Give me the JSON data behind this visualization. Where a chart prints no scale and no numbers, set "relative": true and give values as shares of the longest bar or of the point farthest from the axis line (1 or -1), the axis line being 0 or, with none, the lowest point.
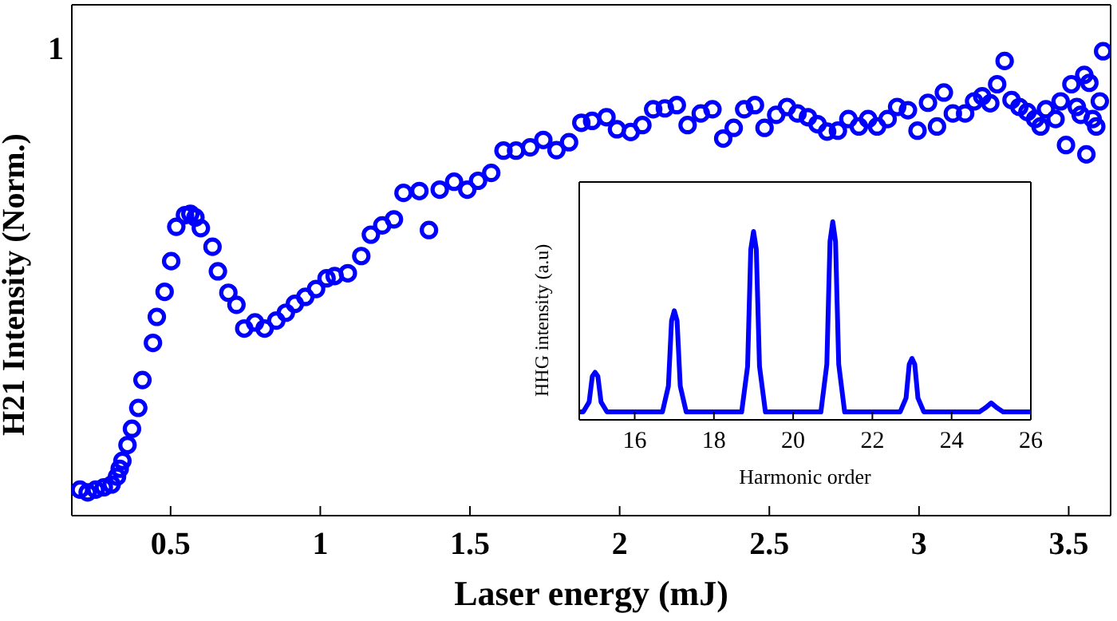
{
  "chart_data": [
    {
      "type": "scatter",
      "xlabel": "Laser energy (mJ)",
      "ylabel": "H21 Intensity (Norm.)",
      "relative": true,
      "marker": "circle",
      "xlim": [
        0.17,
        3.64
      ],
      "xticks": [
        0.5,
        1,
        1.5,
        2,
        2.5,
        3,
        3.5
      ],
      "annotations": [
        "1"
      ],
      "series": [
        {
          "color": "#0000ff",
          "x": [
            0.197,
            0.223,
            0.25,
            0.277,
            0.303,
            0.321,
            0.33,
            0.339,
            0.356,
            0.371,
            0.392,
            0.406,
            0.441,
            0.454,
            0.48,
            0.502,
            0.519,
            0.548,
            0.566,
            0.583,
            0.601,
            0.64,
            0.658,
            0.693,
            0.72,
            0.746,
            0.782,
            0.814,
            0.853,
            0.885,
            0.915,
            0.95,
            0.986,
            1.021,
            1.048,
            1.092,
            1.137,
            1.169,
            1.207,
            1.246,
            1.278,
            1.331,
            1.363,
            1.399,
            1.447,
            1.491,
            1.527,
            1.571,
            1.612,
            1.654,
            1.701,
            1.745,
            1.789,
            1.831,
            1.872,
            1.908,
            1.956,
            1.991,
            2.037,
            2.076,
            2.112,
            2.151,
            2.191,
            2.227,
            2.271,
            2.31,
            2.346,
            2.381,
            2.416,
            2.452,
            2.484,
            2.523,
            2.559,
            2.594,
            2.629,
            2.661,
            2.693,
            2.729,
            2.764,
            2.799,
            2.83,
            2.86,
            2.895,
            2.927,
            2.963,
            2.995,
            3.03,
            3.06,
            3.083,
            3.113,
            3.154,
            3.184,
            3.211,
            3.238,
            3.261,
            3.286,
            3.309,
            3.335,
            3.362,
            3.388,
            3.406,
            3.424,
            3.456,
            3.473,
            3.491,
            3.509,
            3.527,
            3.54,
            3.552,
            3.559,
            3.569,
            3.58,
            3.592,
            3.604,
            3.615
          ],
          "values": [
            0.056,
            0.05,
            0.056,
            0.061,
            0.067,
            0.084,
            0.101,
            0.118,
            0.152,
            0.187,
            0.232,
            0.292,
            0.372,
            0.428,
            0.482,
            0.548,
            0.622,
            0.647,
            0.65,
            0.642,
            0.619,
            0.579,
            0.526,
            0.48,
            0.454,
            0.403,
            0.416,
            0.403,
            0.42,
            0.437,
            0.456,
            0.471,
            0.488,
            0.511,
            0.516,
            0.522,
            0.559,
            0.605,
            0.625,
            0.638,
            0.695,
            0.699,
            0.615,
            0.702,
            0.719,
            0.702,
            0.721,
            0.738,
            0.786,
            0.786,
            0.793,
            0.809,
            0.787,
            0.804,
            0.846,
            0.85,
            0.858,
            0.832,
            0.826,
            0.841,
            0.875,
            0.877,
            0.884,
            0.841,
            0.866,
            0.875,
            0.812,
            0.835,
            0.875,
            0.884,
            0.835,
            0.863,
            0.88,
            0.866,
            0.858,
            0.843,
            0.827,
            0.829,
            0.854,
            0.838,
            0.854,
            0.838,
            0.854,
            0.88,
            0.873,
            0.829,
            0.889,
            0.838,
            0.911,
            0.866,
            0.866,
            0.892,
            0.903,
            0.888,
            0.929,
            0.979,
            0.895,
            0.88,
            0.869,
            0.854,
            0.838,
            0.875,
            0.854,
            0.892,
            0.798,
            0.929,
            0.88,
            0.863,
            0.949,
            0.778,
            0.932,
            0.854,
            0.838,
            0.892,
            1.0
          ]
        }
      ]
    },
    {
      "type": "line",
      "xlabel": "Harmonic order",
      "ylabel": "HHG intensity (a.u)",
      "relative": true,
      "xlim": [
        14.6,
        26
      ],
      "xticks": [
        16,
        18,
        20,
        22,
        24,
        26
      ],
      "series": [
        {
          "color": "#0000ff",
          "x": [
            14.6,
            14.7,
            14.85,
            14.93,
            15,
            15.07,
            15.15,
            15.3,
            16.7,
            16.85,
            16.93,
            17,
            17.07,
            17.15,
            17.3,
            18.7,
            18.85,
            18.93,
            19,
            19.07,
            19.15,
            19.3,
            20.7,
            20.85,
            20.93,
            21,
            21.07,
            21.15,
            21.3,
            22.7,
            22.85,
            22.93,
            23,
            23.07,
            23.15,
            23.3,
            24.7,
            24.85,
            25,
            25.15,
            25.3,
            26
          ],
          "values": [
            0.04,
            0.04,
            0.09,
            0.22,
            0.24,
            0.22,
            0.09,
            0.04,
            0.04,
            0.17,
            0.5,
            0.55,
            0.5,
            0.17,
            0.04,
            0.04,
            0.27,
            0.86,
            0.95,
            0.86,
            0.27,
            0.04,
            0.04,
            0.28,
            0.9,
            1,
            0.9,
            0.28,
            0.04,
            0.04,
            0.11,
            0.28,
            0.31,
            0.28,
            0.11,
            0.04,
            0.04,
            0.06,
            0.085,
            0.06,
            0.04,
            0.04
          ]
        }
      ]
    }
  ]
}
